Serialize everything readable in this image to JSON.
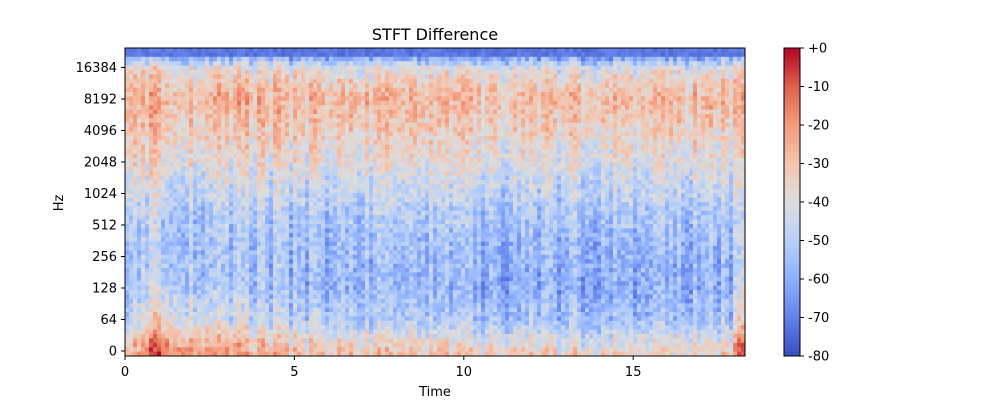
{
  "chart_data": {
    "type": "heatmap",
    "title": "STFT Difference",
    "xlabel": "Time",
    "ylabel": "Hz",
    "xlim": [
      0,
      18.3
    ],
    "x_ticks": [
      {
        "value": 0,
        "label": "0"
      },
      {
        "value": 5,
        "label": "5"
      },
      {
        "value": 10,
        "label": "10"
      },
      {
        "value": 15,
        "label": "15"
      }
    ],
    "y_scale": "symlog",
    "y_ticks": [
      {
        "value": 0,
        "label": "0"
      },
      {
        "value": 64,
        "label": "64"
      },
      {
        "value": 128,
        "label": "128"
      },
      {
        "value": 256,
        "label": "256"
      },
      {
        "value": 512,
        "label": "512"
      },
      {
        "value": 1024,
        "label": "1024"
      },
      {
        "value": 2048,
        "label": "2048"
      },
      {
        "value": 4096,
        "label": "4096"
      },
      {
        "value": 8192,
        "label": "8192"
      },
      {
        "value": 16384,
        "label": "16384"
      }
    ],
    "colormap": "coolwarm",
    "color_range": [
      -80,
      0
    ],
    "colorbar_ticks": [
      {
        "value": 0,
        "label": "+0"
      },
      {
        "value": -10,
        "label": "-10"
      },
      {
        "value": -20,
        "label": "-20"
      },
      {
        "value": -30,
        "label": "-30"
      },
      {
        "value": -40,
        "label": "-40"
      },
      {
        "value": -50,
        "label": "-50"
      },
      {
        "value": -60,
        "label": "-60"
      },
      {
        "value": -70,
        "label": "-70"
      },
      {
        "value": -80,
        "label": "-80"
      }
    ],
    "frequency_profile_db": [
      {
        "hz": 0,
        "db": -32
      },
      {
        "hz": 64,
        "db": -52
      },
      {
        "hz": 128,
        "db": -58
      },
      {
        "hz": 256,
        "db": -57
      },
      {
        "hz": 512,
        "db": -54
      },
      {
        "hz": 1024,
        "db": -48
      },
      {
        "hz": 2048,
        "db": -40
      },
      {
        "hz": 4096,
        "db": -34
      },
      {
        "hz": 8192,
        "db": -28
      },
      {
        "hz": 16384,
        "db": -42
      },
      {
        "hz": 22050,
        "db": -72
      }
    ],
    "time_profile_db": [
      {
        "t": 0,
        "db": -45
      },
      {
        "t": 1,
        "db": -22
      },
      {
        "t": 2,
        "db": -32
      },
      {
        "t": 5,
        "db": -40
      },
      {
        "t": 10,
        "db": -44
      },
      {
        "t": 15,
        "db": -46
      },
      {
        "t": 17.9,
        "db": -44
      },
      {
        "t": 18.1,
        "db": -25
      }
    ]
  }
}
